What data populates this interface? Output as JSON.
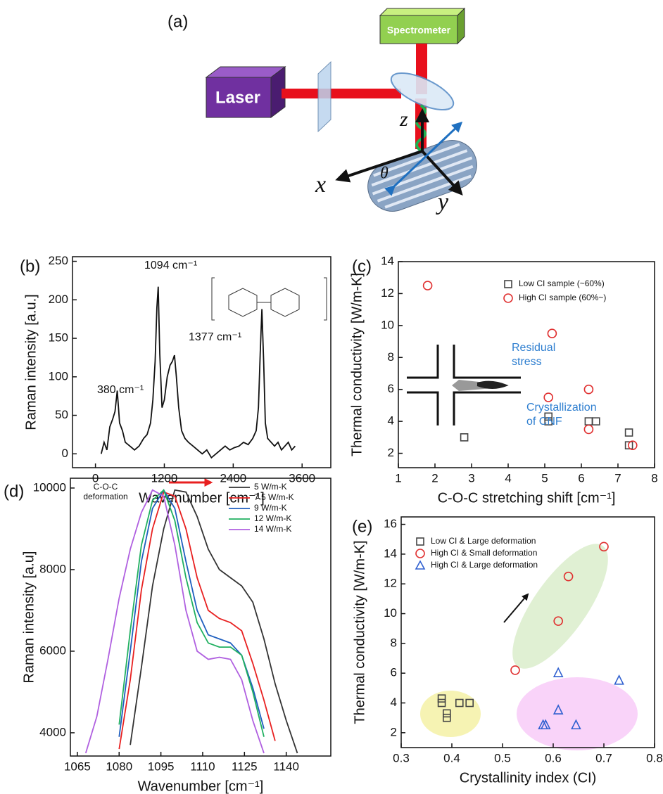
{
  "diagram": {
    "label": "(a)",
    "spectrometer": "Spectrometer",
    "laser": "Laser",
    "z": "z",
    "x": "x",
    "y": "y",
    "theta": "θ"
  },
  "chart_data": [
    {
      "type": "line",
      "label": "(b)",
      "xlabel": "Wavenumber [cm⁻¹]",
      "ylabel": "Raman intensity [a.u.]",
      "color": "#111111",
      "x": [
        100,
        150,
        200,
        250,
        300,
        340,
        380,
        420,
        470,
        520,
        600,
        680,
        760,
        840,
        900,
        960,
        1000,
        1040,
        1070,
        1094,
        1120,
        1160,
        1200,
        1250,
        1300,
        1340,
        1377,
        1410,
        1450,
        1500,
        1560,
        1620,
        1700,
        1780,
        1860,
        1940,
        2020,
        2100,
        2180,
        2260,
        2340,
        2420,
        2500,
        2580,
        2660,
        2740,
        2800,
        2840,
        2870,
        2900,
        2930,
        2960,
        3000,
        3060,
        3120,
        3180,
        3240,
        3300,
        3360,
        3420,
        3480
      ],
      "values": [
        0,
        15,
        5,
        35,
        45,
        55,
        82,
        40,
        30,
        15,
        10,
        5,
        10,
        20,
        25,
        40,
        70,
        120,
        190,
        217,
        130,
        60,
        70,
        100,
        115,
        120,
        128,
        100,
        60,
        30,
        20,
        15,
        10,
        5,
        0,
        5,
        -5,
        0,
        5,
        10,
        5,
        8,
        10,
        15,
        12,
        20,
        30,
        60,
        130,
        188,
        120,
        40,
        20,
        15,
        10,
        15,
        5,
        10,
        15,
        5,
        10
      ],
      "xlim": [
        -400,
        4100
      ],
      "ylim": [
        -18,
        256
      ],
      "xticks": [
        0,
        1200,
        2400,
        3600
      ],
      "yticks": [
        0,
        50,
        100,
        150,
        200,
        250
      ],
      "annotations": [
        {
          "lines": [
            "380 cm⁻¹"
          ]
        },
        {
          "lines": [
            "1094 cm⁻¹"
          ]
        },
        {
          "lines": [
            "1377 cm⁻¹"
          ]
        }
      ]
    },
    {
      "type": "scatter",
      "label": "(c)",
      "xlabel": "C-O-C stretching shift  [cm⁻¹]",
      "ylabel": "Thermal conductivity [W/m-K]",
      "series": [
        {
          "name": "Low CI sample (~60%)",
          "color": "#444444",
          "marker": "square",
          "x": [
            2.8,
            5.1,
            5.1,
            6.2,
            6.4,
            7.3,
            7.3
          ],
          "values": [
            3.0,
            4.3,
            4.0,
            4.0,
            4.0,
            3.3,
            2.5
          ]
        },
        {
          "name": "High CI sample (60%~)",
          "color": "#e03030",
          "marker": "circle",
          "x": [
            1.8,
            5.2,
            5.1,
            6.2,
            6.2,
            7.4
          ],
          "values": [
            12.5,
            9.5,
            5.5,
            6.0,
            3.5,
            2.5
          ]
        }
      ],
      "xlim": [
        1,
        8
      ],
      "ylim": [
        1.1,
        14
      ],
      "xticks": [
        1,
        2,
        3,
        4,
        5,
        6,
        7,
        8
      ],
      "yticks": [
        2,
        4,
        6,
        8,
        10,
        12,
        14
      ],
      "annotations": [
        {
          "lines": [
            "Residual",
            "stress"
          ]
        },
        {
          "lines": [
            "Crystallization",
            "of CNF"
          ]
        }
      ]
    },
    {
      "type": "line",
      "label": "(d)",
      "xlabel": "Wavenumber [cm⁻¹]",
      "ylabel": "Raman intensity [a.u]",
      "x": [
        1068,
        1072,
        1076,
        1080,
        1084,
        1088,
        1092,
        1096,
        1100,
        1104,
        1108,
        1112,
        1116,
        1120,
        1124,
        1128,
        1132,
        1136,
        1140,
        1144,
        1148
      ],
      "series": [
        {
          "name": "5 W/m-K",
          "color": "#333333",
          "values": [
            null,
            null,
            null,
            null,
            3700,
            5600,
            7600,
            9000,
            9950,
            9900,
            9300,
            8500,
            8000,
            7800,
            7600,
            7200,
            6300,
            5200,
            4300,
            3500,
            null
          ]
        },
        {
          "name": "7.5 W/m-K",
          "color": "#e82020",
          "values": [
            null,
            null,
            null,
            3600,
            5300,
            7500,
            9000,
            9900,
            9800,
            9000,
            7800,
            7000,
            6800,
            6700,
            6500,
            5700,
            4800,
            3800,
            null,
            null,
            null
          ]
        },
        {
          "name": "9 W/m-K",
          "color": "#1f5fbf",
          "values": [
            null,
            null,
            null,
            3900,
            6000,
            8200,
            9500,
            9950,
            9500,
            8200,
            7000,
            6400,
            6300,
            6200,
            5900,
            5100,
            4100,
            null,
            null,
            null,
            null
          ]
        },
        {
          "name": "12 W/m-K",
          "color": "#20b060",
          "values": [
            null,
            null,
            null,
            4200,
            6500,
            8600,
            9700,
            9950,
            9200,
            7800,
            6700,
            6200,
            6100,
            6100,
            5900,
            5000,
            3900,
            null,
            null,
            null,
            null
          ]
        },
        {
          "name": "14 W/m-K",
          "color": "#b060e0",
          "values": [
            3500,
            4400,
            5800,
            7300,
            8500,
            9400,
            9950,
            9800,
            8600,
            7000,
            6000,
            5800,
            5850,
            5800,
            5300,
            4300,
            3500,
            null,
            null,
            null,
            null
          ]
        }
      ],
      "xlim": [
        1062.5,
        1156
      ],
      "ylim": [
        3430,
        10240
      ],
      "xticks": [
        1065,
        1080,
        1095,
        1110,
        1125,
        1140
      ],
      "yticks": [
        4000,
        6000,
        8000,
        10000
      ],
      "annotations": [
        {
          "lines": [
            "C-O-C",
            "deformation"
          ]
        }
      ]
    },
    {
      "type": "scatter",
      "label": "(e)",
      "xlabel": "Crystallinity index (CI)",
      "ylabel": "Thermal conductivity [W/m-K]",
      "series": [
        {
          "name": "Low CI & Large deformation",
          "color": "#444444",
          "marker": "square",
          "x": [
            0.38,
            0.38,
            0.39,
            0.39,
            0.415,
            0.435
          ],
          "values": [
            4.3,
            4.0,
            3.0,
            3.3,
            4.0,
            4.0
          ]
        },
        {
          "name": "High CI & Small deformation",
          "color": "#e03030",
          "marker": "circle",
          "x": [
            0.525,
            0.61,
            0.63,
            0.7
          ],
          "values": [
            6.2,
            9.5,
            12.5,
            14.5
          ]
        },
        {
          "name": "High CI & Large deformation",
          "color": "#3060d0",
          "marker": "triangle",
          "x": [
            0.58,
            0.585,
            0.61,
            0.61,
            0.645,
            0.73
          ],
          "values": [
            2.5,
            2.5,
            3.5,
            6.0,
            2.5,
            5.5
          ]
        }
      ],
      "xlim": [
        0.3,
        0.8
      ],
      "ylim": [
        1,
        16.5
      ],
      "xticks": [
        0.3,
        0.4,
        0.5,
        0.6,
        0.7,
        0.8
      ],
      "yticks": [
        2,
        4,
        6,
        8,
        10,
        12,
        14,
        16
      ]
    }
  ]
}
